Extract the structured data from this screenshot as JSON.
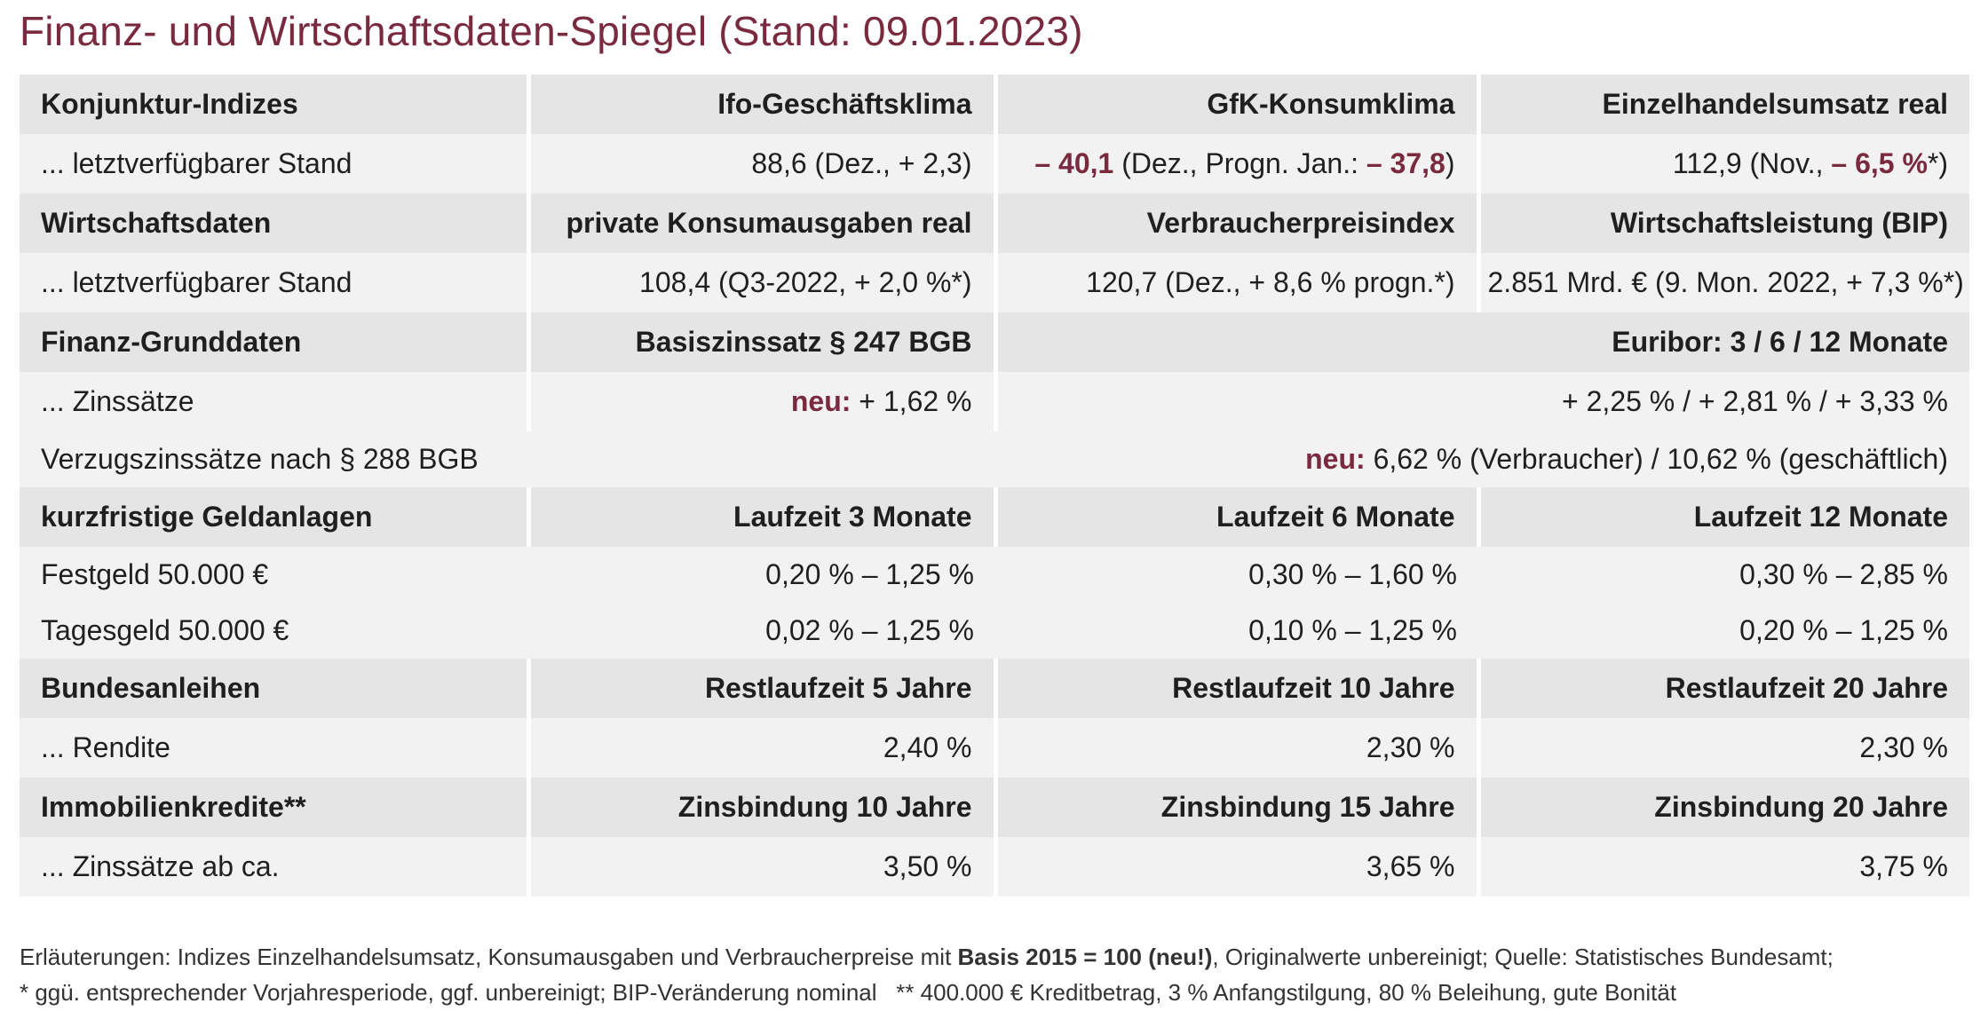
{
  "title": "Finanz- und Wirtschaftsdaten-Spiegel (Stand: 09.01.2023)",
  "rows": {
    "konj_head": [
      "Konjunktur-Indizes",
      "Ifo-Geschäftsklima",
      "GfK-Konsumklima",
      "Einzelhandelsumsatz real"
    ],
    "konj_stand_label": "... letztverfügbarer Stand",
    "ifo_value": "88,6 (Dez., + 2,3)",
    "gfk_value": "– 40,1",
    "gfk_mid": " (Dez., Progn. Jan.: ",
    "gfk_progn": "– 37,8",
    "gfk_close": ")",
    "ehu_value": "112,9 (Nov., ",
    "ehu_change": "– 6,5 %",
    "ehu_close": "*)",
    "wirt_head": [
      "Wirtschaftsdaten",
      "private Konsumausgaben real",
      "Verbraucherpreisindex",
      "Wirtschaftsleistung (BIP)"
    ],
    "wirt_stand_label": "... letztverfügbarer Stand",
    "wirt_values": [
      "108,4 (Q3-2022, + 2,0 %*)",
      "120,7 (Dez., + 8,6 % progn.*)",
      "2.851 Mrd. € (9. Mon. 2022, + 7,3 %*)"
    ],
    "fin_head": [
      "Finanz-Grunddaten",
      "Basiszinssatz § 247 BGB",
      "Euribor: 3 / 6 / 12 Monate"
    ],
    "zins_label": "... Zinssätze",
    "basis_new_label": "neu:",
    "basis_value": " + 1,62 %",
    "euribor_value": "+ 2,25 % / + 2,81 % / + 3,33 %",
    "verzug_label": "Verzugszinssätze nach § 288 BGB",
    "verzug_new_label": "neu:",
    "verzug_value": " 6,62 % (Verbraucher) / 10,62 % (geschäftlich)",
    "geld_head": [
      "kurzfristige Geldanlagen",
      "Laufzeit 3 Monate",
      "Laufzeit 6 Monate",
      "Laufzeit 12 Monate"
    ],
    "festgeld": [
      "Festgeld 50.000 €",
      "0,20 % – 1,25 %",
      "0,30 % – 1,60 %",
      "0,30 % – 2,85 %"
    ],
    "tagesgeld": [
      "Tagesgeld 50.000 €",
      "0,02 % – 1,25 %",
      "0,10 % – 1,25 %",
      "0,20 % – 1,25 %"
    ],
    "bund_head": [
      "Bundesanleihen",
      "Restlaufzeit 5 Jahre",
      "Restlaufzeit 10 Jahre",
      "Restlaufzeit 20 Jahre"
    ],
    "rendite": [
      "... Rendite",
      "2,40 %",
      "2,30 %",
      "2,30 %"
    ],
    "immo_head": [
      "Immobilienkredite**",
      "Zinsbindung 10 Jahre",
      "Zinsbindung 15 Jahre",
      "Zinsbindung 20 Jahre"
    ],
    "immo_zins": [
      "... Zinssätze ab ca.",
      "3,50 %",
      "3,65 %",
      "3,75 %"
    ]
  },
  "footnote": {
    "line1_a": "Erläuterungen: Indizes Einzelhandelsumsatz, Konsumausgaben und Verbraucherpreise mit ",
    "line1_b": "Basis 2015 = 100 (neu!)",
    "line1_c": ", Originalwerte unbereinigt; Quelle: Statistisches Bundesamt;",
    "line2": "* ggü. entsprechender Vorjahresperiode, ggf. unbereinigt; BIP-Veränderung nominal   ** 400.000 € Kreditbetrag, 3 % Anfangstilgung, 80 % Beleihung, gute Bonität"
  },
  "colors": {
    "accent": "#7a2a3f",
    "header_bg": "#e5e5e5",
    "row_bg": "#f2f2f2"
  }
}
